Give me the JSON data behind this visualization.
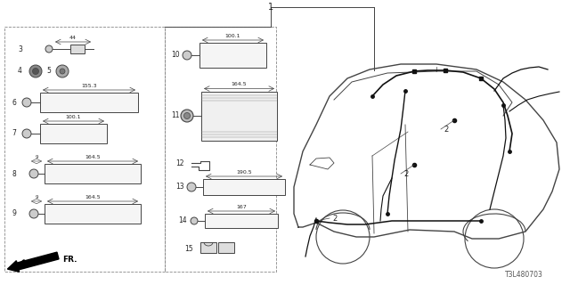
{
  "bg_color": "#ffffff",
  "lc": "#444444",
  "tc": "#222222",
  "hc": "#111111",
  "diagram_id": "T3L480703",
  "fs": 5.5
}
